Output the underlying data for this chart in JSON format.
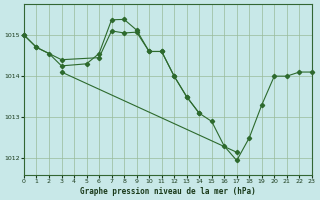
{
  "title": "Graphe pression niveau de la mer (hPa)",
  "bg_color": "#c8e8e8",
  "grid_color": "#99bb99",
  "line_color": "#2d6a2d",
  "xlim": [
    0,
    23
  ],
  "ylim": [
    1011.6,
    1015.75
  ],
  "yticks": [
    1012,
    1013,
    1014,
    1015
  ],
  "xticks": [
    0,
    1,
    2,
    3,
    4,
    5,
    6,
    7,
    8,
    9,
    10,
    11,
    12,
    13,
    14,
    15,
    16,
    17,
    18,
    19,
    20,
    21,
    22,
    23
  ],
  "series": [
    {
      "x": [
        0,
        1,
        3,
        6,
        7,
        8,
        9,
        10,
        11,
        12,
        13,
        14,
        15,
        16,
        17,
        18,
        19,
        20,
        21,
        22,
        23
      ],
      "y": [
        1015.0,
        1014.7,
        1014.4,
        1014.45,
        1015.1,
        1015.05,
        1015.07,
        1014.6,
        1014.6,
        1014.0,
        1013.5,
        1013.1,
        1012.9,
        1012.3,
        1011.95,
        1012.5,
        1013.3,
        1014.0,
        1014.0,
        1014.1,
        1014.1
      ]
    },
    {
      "x": [
        0,
        1,
        2,
        3,
        5,
        6,
        7,
        8,
        9,
        10,
        11,
        12,
        13,
        14
      ],
      "y": [
        1015.0,
        1014.7,
        1014.55,
        1014.25,
        1014.3,
        1014.55,
        1015.37,
        1015.38,
        1015.12,
        1014.6,
        1014.6,
        1014.0,
        1013.5,
        1013.1
      ]
    },
    {
      "x": [
        3,
        17
      ],
      "y": [
        1014.1,
        1012.15
      ]
    }
  ]
}
